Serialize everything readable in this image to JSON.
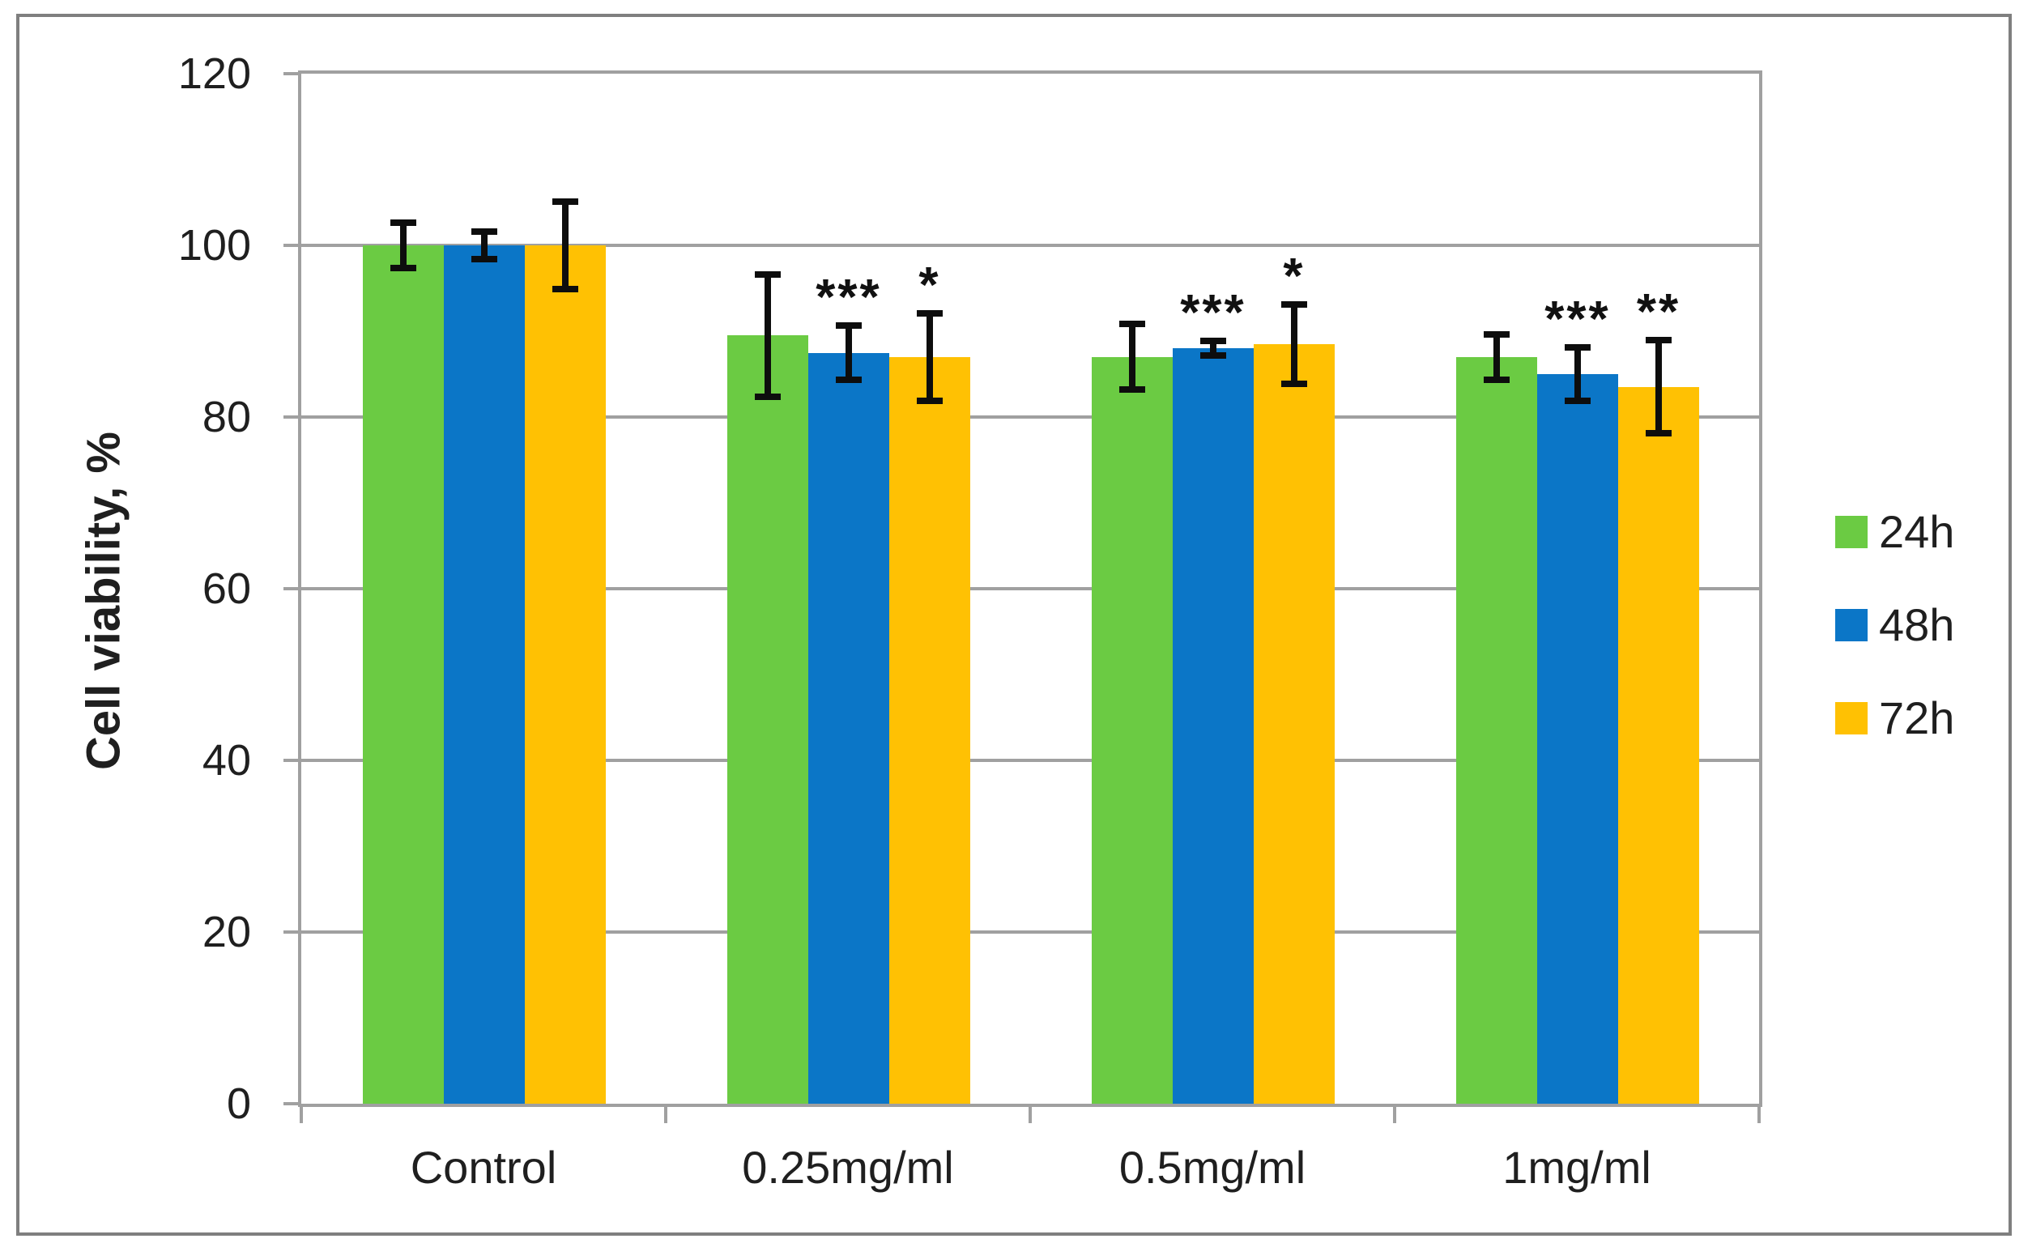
{
  "figure": {
    "background": "#ffffff",
    "frame_color": "#7f7f7f",
    "axis_color": "#a0a0a0",
    "text_color": "#1f1f1f",
    "error_bar_color": "#0d0d0d"
  },
  "chart_data": {
    "type": "bar",
    "title": "",
    "xlabel": "",
    "ylabel": "Cell viability, %",
    "ylim": [
      0,
      120
    ],
    "yticks": [
      0,
      20,
      40,
      60,
      80,
      100,
      120
    ],
    "grid": true,
    "legend_position": "right",
    "categories": [
      "Control",
      "0.25mg/ml",
      "0.5mg/ml",
      "1mg/ml"
    ],
    "series": [
      {
        "name": "24h",
        "color": "#6bcb43",
        "values": [
          100,
          89.5,
          87,
          87
        ],
        "errors": [
          3,
          7.5,
          4.2,
          3
        ],
        "annotations": [
          "",
          "",
          "",
          ""
        ]
      },
      {
        "name": "48h",
        "color": "#0b76c7",
        "values": [
          100,
          87.5,
          88,
          85
        ],
        "errors": [
          2,
          3.5,
          1.2,
          3.5
        ],
        "annotations": [
          "",
          "***",
          "***",
          "***"
        ]
      },
      {
        "name": "72h",
        "color": "#ffc103",
        "values": [
          100,
          87,
          88.5,
          83.5
        ],
        "errors": [
          5.5,
          5.5,
          5,
          5.8
        ],
        "annotations": [
          "",
          "*",
          "*",
          "**"
        ]
      }
    ]
  }
}
